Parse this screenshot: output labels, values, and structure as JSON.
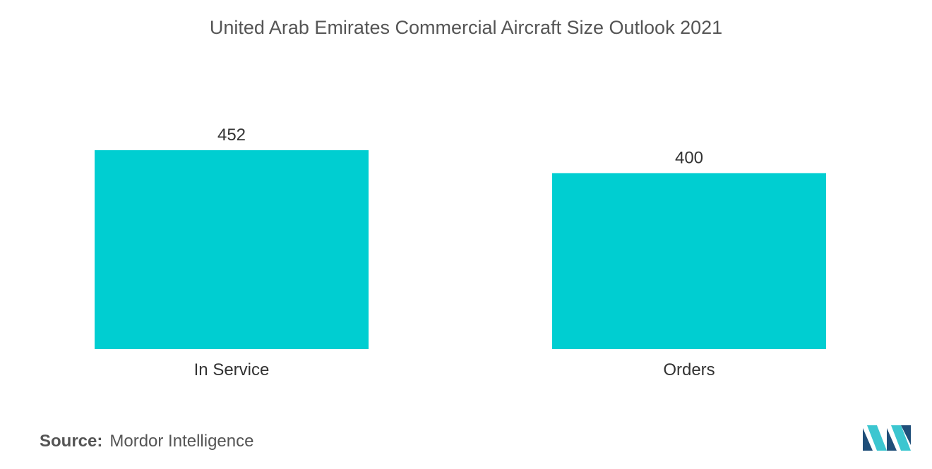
{
  "title": "United Arab Emirates Commercial Aircraft Size Outlook 2021",
  "source": {
    "label": "Source:",
    "value": "Mordor Intelligence"
  },
  "logo_icon": "mordor-intelligence-logo",
  "colors": {
    "bar": "#00CED1",
    "logo_dark": "#1f4e79",
    "logo_light": "#3cc6d0"
  },
  "chart_data": {
    "type": "bar",
    "categories": [
      "In Service",
      "Orders"
    ],
    "values": [
      452,
      400
    ],
    "title": "United Arab Emirates Commercial Aircraft Size Outlook 2021",
    "xlabel": "",
    "ylabel": "",
    "ylim": [
      0,
      452
    ],
    "grid": false,
    "legend": "none"
  }
}
